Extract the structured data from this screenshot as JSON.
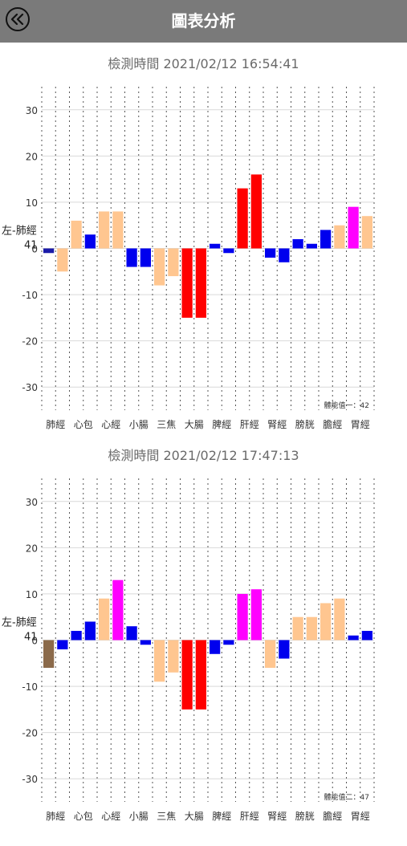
{
  "header": {
    "title": "圖表分析",
    "back_icon": "double-chevron-left-icon"
  },
  "legend_label": "左-肺經",
  "chart_data": [
    {
      "type": "bar",
      "title": "檢測時間 2021/02/12 16:54:41",
      "categories": [
        "肺經",
        "心包",
        "心經",
        "小腸",
        "三焦",
        "大腸",
        "脾經",
        "肝經",
        "腎經",
        "膀胱",
        "膽經",
        "胃經"
      ],
      "yticks": [
        30,
        20,
        10,
        0,
        -10,
        -20,
        -30
      ],
      "ylim": [
        -35,
        35
      ],
      "grid": true,
      "highlight_value": "41",
      "footnote": "體能值一：42",
      "bars": [
        {
          "value": -1,
          "color": "#1a1aa8"
        },
        {
          "value": -5,
          "color": "#ffc690"
        },
        {
          "value": 6,
          "color": "#ffc690"
        },
        {
          "value": 3,
          "color": "#0000ee"
        },
        {
          "value": 8,
          "color": "#ffc690"
        },
        {
          "value": 8,
          "color": "#ffc690"
        },
        {
          "value": -4,
          "color": "#0000ee"
        },
        {
          "value": -4,
          "color": "#0000ee"
        },
        {
          "value": -8,
          "color": "#ffc690"
        },
        {
          "value": -6,
          "color": "#ffc690"
        },
        {
          "value": -15,
          "color": "#ff0000"
        },
        {
          "value": -15,
          "color": "#ff0000"
        },
        {
          "value": 1,
          "color": "#0000ee"
        },
        {
          "value": -1,
          "color": "#0000ee"
        },
        {
          "value": 13,
          "color": "#ff0000"
        },
        {
          "value": 16,
          "color": "#ff0000"
        },
        {
          "value": -2,
          "color": "#0000ee"
        },
        {
          "value": -3,
          "color": "#0000ee"
        },
        {
          "value": 2,
          "color": "#0000ee"
        },
        {
          "value": 1,
          "color": "#0000ee"
        },
        {
          "value": 4,
          "color": "#0000ee"
        },
        {
          "value": 5,
          "color": "#ffc690"
        },
        {
          "value": 9,
          "color": "#ff00ff"
        },
        {
          "value": 7,
          "color": "#ffc690"
        }
      ]
    },
    {
      "type": "bar",
      "title": "檢測時間 2021/02/12 17:47:13",
      "categories": [
        "肺經",
        "心包",
        "心經",
        "小腸",
        "三焦",
        "大腸",
        "脾經",
        "肝經",
        "腎經",
        "膀胱",
        "膽經",
        "胃經"
      ],
      "yticks": [
        30,
        20,
        10,
        0,
        -10,
        -20,
        -30
      ],
      "ylim": [
        -35,
        35
      ],
      "grid": true,
      "highlight_value": "41",
      "footnote": "體能值二：47",
      "bars": [
        {
          "value": -6,
          "color": "#8b6a4a"
        },
        {
          "value": -2,
          "color": "#0000ee"
        },
        {
          "value": 2,
          "color": "#0000ee"
        },
        {
          "value": 4,
          "color": "#0000ee"
        },
        {
          "value": 9,
          "color": "#ffc690"
        },
        {
          "value": 13,
          "color": "#ff00ff"
        },
        {
          "value": 3,
          "color": "#0000ee"
        },
        {
          "value": -1,
          "color": "#0000ee"
        },
        {
          "value": -9,
          "color": "#ffc690"
        },
        {
          "value": -7,
          "color": "#ffc690"
        },
        {
          "value": -15,
          "color": "#ff0000"
        },
        {
          "value": -15,
          "color": "#ff0000"
        },
        {
          "value": -3,
          "color": "#0000ee"
        },
        {
          "value": -1,
          "color": "#0000ee"
        },
        {
          "value": 10,
          "color": "#ff00ff"
        },
        {
          "value": 11,
          "color": "#ff00ff"
        },
        {
          "value": -6,
          "color": "#ffc690"
        },
        {
          "value": -4,
          "color": "#0000ee"
        },
        {
          "value": 5,
          "color": "#ffc690"
        },
        {
          "value": 5,
          "color": "#ffc690"
        },
        {
          "value": 8,
          "color": "#ffc690"
        },
        {
          "value": 9,
          "color": "#ffc690"
        },
        {
          "value": 1,
          "color": "#0000ee"
        },
        {
          "value": 2,
          "color": "#0000ee"
        }
      ]
    }
  ]
}
